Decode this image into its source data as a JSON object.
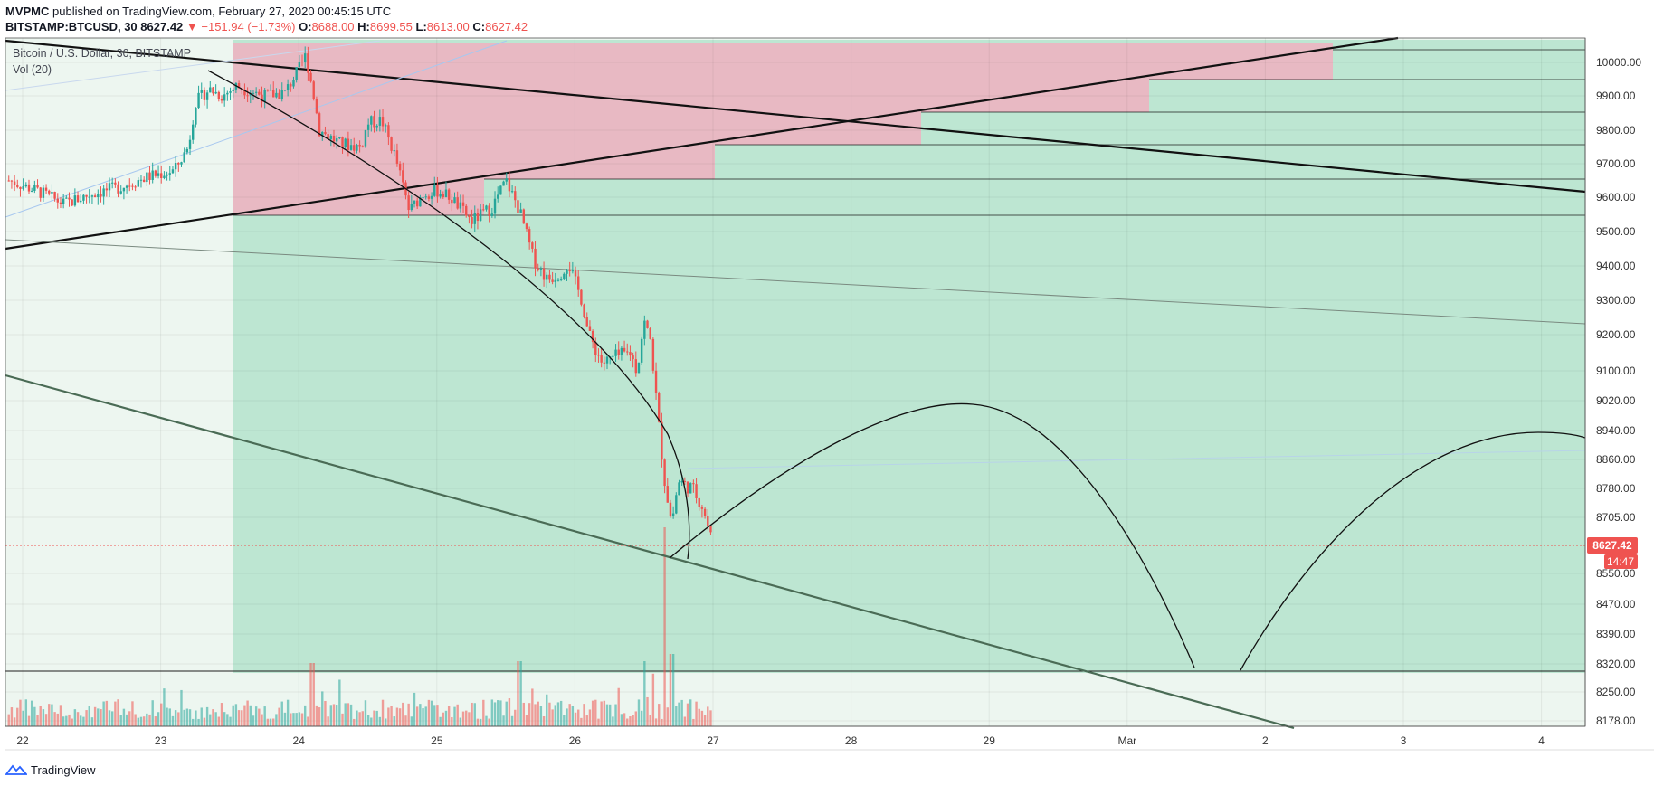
{
  "header": {
    "author": "MVPMC",
    "published_text": "published on TradingView.com, February 27, 2020 00:45:15 UTC",
    "symbol": "BITSTAMP:BTCUSD, 30",
    "last": "8627.42",
    "change": "▼ −151.94 (−1.73%)",
    "o_label": "O:",
    "o_value": "8688.00",
    "h_label": "H:",
    "h_value": "8699.55",
    "l_label": "L:",
    "l_value": "8613.00",
    "c_label": "C:",
    "c_value": "8627.42"
  },
  "legend": {
    "title": "Bitcoin / U.S. Dollar, 30, BITSTAMP",
    "volume": "Vol (20)"
  },
  "footer": {
    "brand": "TradingView",
    "logo_icon": "tradingview-logo-icon"
  },
  "colors": {
    "up": "#26a69a",
    "down": "#ef5350",
    "green_zone": "#bde6d2",
    "pink_zone": "#e8b9c3",
    "light_zone": "#edf6f0",
    "price_line": "#ef5350",
    "background": "#ffffff"
  },
  "chart_data": {
    "type": "candlestick",
    "title": "Bitcoin / U.S. Dollar, 30, BITSTAMP",
    "xlabel": "",
    "ylabel": "",
    "x_ticks": [
      "22",
      "23",
      "24",
      "25",
      "26",
      "27",
      "28",
      "29",
      "Mar",
      "2",
      "3",
      "4"
    ],
    "y_ticks": [
      10000,
      9900,
      9800,
      9700,
      9600,
      9500,
      9400,
      9300,
      9200,
      9100,
      9020,
      8940,
      8860,
      8780,
      8705,
      8550,
      8470,
      8390,
      8320,
      8250,
      8178
    ],
    "y_tick_labels": [
      "10000.00",
      "9900.00",
      "9800.00",
      "9700.00",
      "9600.00",
      "9500.00",
      "9400.00",
      "9300.00",
      "9200.00",
      "9100.00",
      "9020.00",
      "8940.00",
      "8860.00",
      "8780.00",
      "8705.00",
      "8550.00",
      "8470.00",
      "8390.00",
      "8320.00",
      "8250.00",
      "8178.00"
    ],
    "last_price": 8627.42,
    "last_price_label": "8627.42",
    "countdown_label": "14:47",
    "price_path": [
      [
        21.9,
        9650
      ],
      [
        22.1,
        9620
      ],
      [
        22.3,
        9580
      ],
      [
        22.5,
        9610
      ],
      [
        22.7,
        9630
      ],
      [
        22.9,
        9660
      ],
      [
        23.1,
        9680
      ],
      [
        23.2,
        9750
      ],
      [
        23.25,
        9880
      ],
      [
        23.35,
        9920
      ],
      [
        23.45,
        9900
      ],
      [
        23.55,
        9930
      ],
      [
        23.75,
        9900
      ],
      [
        23.9,
        9910
      ],
      [
        24.0,
        9980
      ],
      [
        24.05,
        10020
      ],
      [
        24.1,
        9920
      ],
      [
        24.15,
        9800
      ],
      [
        24.3,
        9760
      ],
      [
        24.45,
        9750
      ],
      [
        24.5,
        9820
      ],
      [
        24.6,
        9830
      ],
      [
        24.7,
        9720
      ],
      [
        24.8,
        9560
      ],
      [
        24.9,
        9610
      ],
      [
        25.0,
        9620
      ],
      [
        25.1,
        9600
      ],
      [
        25.25,
        9530
      ],
      [
        25.4,
        9570
      ],
      [
        25.5,
        9650
      ],
      [
        25.6,
        9560
      ],
      [
        25.7,
        9420
      ],
      [
        25.8,
        9360
      ],
      [
        25.9,
        9380
      ],
      [
        25.95,
        9410
      ],
      [
        26.05,
        9300
      ],
      [
        26.1,
        9200
      ],
      [
        26.2,
        9120
      ],
      [
        26.3,
        9140
      ],
      [
        26.4,
        9150
      ],
      [
        26.45,
        9100
      ],
      [
        26.5,
        9240
      ],
      [
        26.55,
        9180
      ],
      [
        26.6,
        8980
      ],
      [
        26.65,
        8800
      ],
      [
        26.7,
        8690
      ],
      [
        26.75,
        8800
      ],
      [
        26.85,
        8780
      ],
      [
        26.93,
        8730
      ],
      [
        27.0,
        8627.42
      ]
    ],
    "volume_peaks": [
      [
        24.1,
        0.7
      ],
      [
        25.6,
        0.72
      ],
      [
        26.5,
        0.72
      ],
      [
        26.65,
        2.2
      ],
      [
        26.7,
        0.8
      ]
    ]
  }
}
